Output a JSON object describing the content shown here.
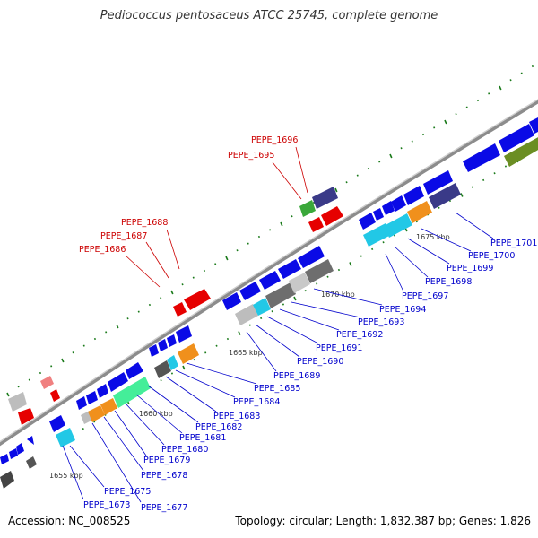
{
  "title": "Pediococcus pentosaceus ATCC 25745, complete genome",
  "footer": {
    "accession": "Accession: NC_008525",
    "topology": "Topology: circular; Length: 1,832,387 bp; Genes: 1,826"
  },
  "colors": {
    "forward_cds": "#0a0ae6",
    "reverse_cds": "#5a5a5a",
    "highlight_gene": "#e60000",
    "backbone": "#8c8c8c",
    "tick": "#1a7a1a",
    "label_blue": "#0000cc",
    "label_red": "#cc0000"
  },
  "scale_labels": [
    "1655 kbp",
    "1660 kbp",
    "1665 kbp",
    "1670 kbp",
    "1675 kbp"
  ],
  "lower_gene_labels": [
    "PEPE_1673",
    "PEPE_1675",
    "PEPE_1677",
    "PEPE_1678",
    "PEPE_1679",
    "PEPE_1680",
    "PEPE_1681",
    "PEPE_1682",
    "PEPE_1683",
    "PEPE_1684",
    "PEPE_1685",
    "PEPE_1689",
    "PEPE_1690",
    "PEPE_1691",
    "PEPE_1692",
    "PEPE_1693",
    "PEPE_1694",
    "PEPE_1697",
    "PEPE_1698",
    "PEPE_1699",
    "PEPE_1700",
    "PEPE_1701"
  ],
  "upper_gene_labels": [
    "PEPE_1696",
    "PEPE_1695",
    "PEPE_1688",
    "PEPE_1687",
    "PEPE_1686"
  ]
}
